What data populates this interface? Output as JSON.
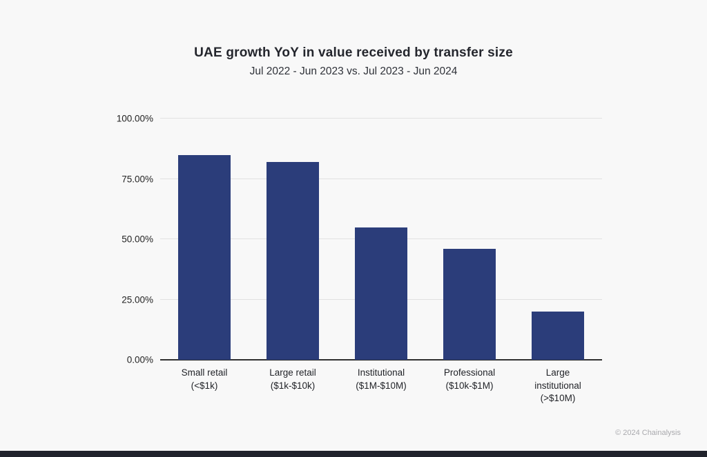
{
  "page": {
    "title": "UAE growth YoY in value received by transfer size",
    "subtitle": "Jul 2022 - Jun 2023 vs. Jul 2023 - Jun 2024",
    "footer_credit": "© 2024 Chainalysis",
    "colors": {
      "bar": "#2b3d7a",
      "background": "#f8f8f8",
      "gridline": "#e1e1e1",
      "axis": "#2e2e2e",
      "bottom_strip": "#20232c"
    }
  },
  "chart_data": {
    "type": "bar",
    "title": "UAE growth YoY in value received by transfer size",
    "subtitle": "Jul 2022 - Jun 2023 vs. Jul 2023 - Jun 2024",
    "categories": [
      {
        "label": "Small retail",
        "range": "(<$1k)"
      },
      {
        "label": "Large retail",
        "range": "($1k-$10k)"
      },
      {
        "label": "Institutional",
        "range": "($1M-$10M)"
      },
      {
        "label": "Professional",
        "range": "($10k-$1M)"
      },
      {
        "label": "Large institutional",
        "range": "(>$10M)"
      }
    ],
    "values": [
      85,
      82,
      55,
      46,
      20
    ],
    "unit": "%",
    "xlabel": "",
    "ylabel": "",
    "ylim": [
      0,
      100
    ],
    "yticks": [
      0,
      25,
      50,
      75,
      100
    ],
    "ytick_labels": [
      "0.00%",
      "25.00%",
      "50.00%",
      "75.00%",
      "100.00%"
    ],
    "grid": "horizontal",
    "legend": "none"
  }
}
